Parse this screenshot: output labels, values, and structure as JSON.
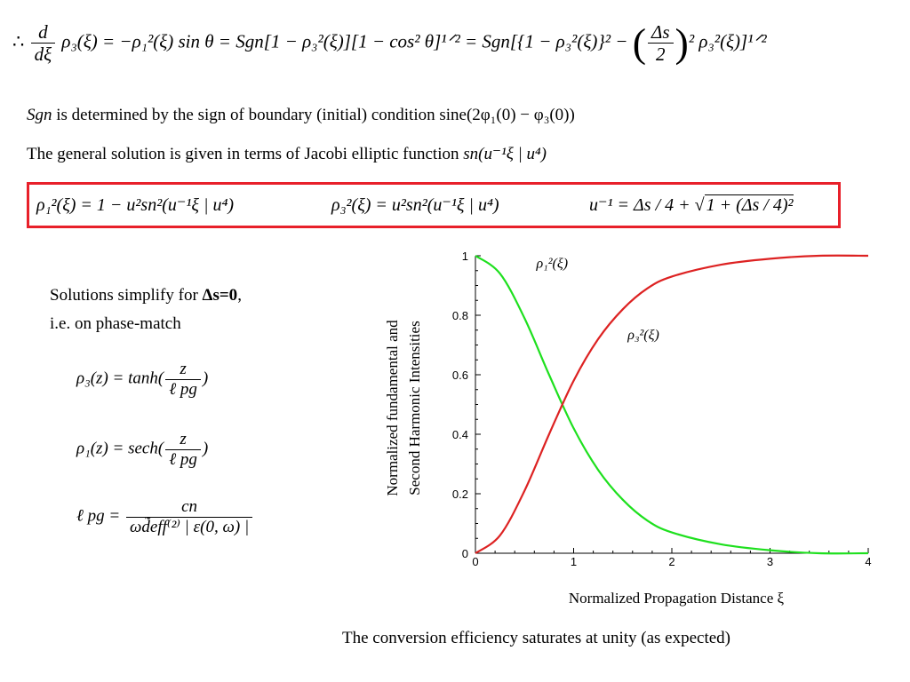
{
  "equations": {
    "top_a": "∴ ",
    "top_d": "d",
    "top_dxi": "dξ",
    "top_b": "ρ₃(ξ) = −ρ₁²(ξ) sin θ = Sgn[1 − ρ₃²(ξ)][1 − cos² θ]¹ᐟ² = Sgn[{1 − ρ₃²(ξ)}² − ",
    "top_delta_s": "Δs",
    "top_two": "2",
    "top_c": "² ρ₃²(ξ)]¹ᐟ²",
    "sgn_line_italic": "Sgn",
    "sgn_line_rest": " is determined by the sign of boundary (initial) condition  sine(2φ₁(0) − φ₃(0))",
    "general_line_text": "The general solution is given in terms of Jacobi elliptic function ",
    "general_line_math": "sn(u⁻¹ξ | u⁴)",
    "boxed_1": "ρ₁²(ξ) = 1 − u²sn²(u⁻¹ξ | u⁴)",
    "boxed_2": "ρ₃²(ξ) = u²sn²(u⁻¹ξ | u⁴)",
    "boxed_3a": "u⁻¹ = Δs / 4 + ",
    "boxed_3b": "1 + (Δs / 4)²"
  },
  "left_panel": {
    "line1_a": "Solutions simplify for ",
    "line1_b": "Δs=0",
    "line1_c": ",",
    "line2": "i.e. on phase-match",
    "f1_lhs": "ρ₃(z) = tanh(",
    "f1_num": "z",
    "f1_den": "ℓ pg",
    "f1_rhs": ")",
    "f2_lhs": "ρ₁(z) = sech(",
    "f2_num": "z",
    "f2_den": "ℓ pg",
    "f2_rhs": ")",
    "f3_lhs": "ℓ pg = ",
    "f3_num": "cn",
    "f3_den": "ωd̃eff⁽²⁾ | ε(0, ω) |"
  },
  "caption": "The conversion efficiency saturates at unity (as expected)",
  "chart_data": {
    "type": "line",
    "xlabel": "Normalized  Propagation  Distance  ξ",
    "ylabel_line1": "Normalized  fundamental  and",
    "ylabel_line2": "Second Harmonic Intensities",
    "xlim": [
      0,
      4
    ],
    "ylim": [
      0,
      1
    ],
    "xticks": [
      "0",
      "1",
      "2",
      "3",
      "4"
    ],
    "yticks": [
      "0",
      "0.2",
      "0.4",
      "0.6",
      "0.8",
      "1"
    ],
    "series": [
      {
        "name": "ρ₁²(ξ)",
        "color": "#1ee01e",
        "x": [
          0,
          0.25,
          0.5,
          0.75,
          1.0,
          1.25,
          1.5,
          1.75,
          2.0,
          2.5,
          3.0,
          3.5,
          4.0
        ],
        "y": [
          1.0,
          0.94,
          0.79,
          0.6,
          0.42,
          0.28,
          0.18,
          0.11,
          0.07,
          0.03,
          0.01,
          0.0,
          0.0
        ]
      },
      {
        "name": "ρ₃²(ξ)",
        "color": "#dd2222",
        "x": [
          0,
          0.25,
          0.5,
          0.75,
          1.0,
          1.25,
          1.5,
          1.75,
          2.0,
          2.5,
          3.0,
          3.5,
          4.0
        ],
        "y": [
          0.0,
          0.06,
          0.21,
          0.4,
          0.58,
          0.72,
          0.82,
          0.89,
          0.93,
          0.97,
          0.99,
          1.0,
          1.0
        ]
      }
    ],
    "annotations": [
      {
        "text": "ρ₁²(ξ)",
        "x": 0.62,
        "y": 0.96
      },
      {
        "text": "ρ₃²(ξ)",
        "x": 1.55,
        "y": 0.72
      }
    ]
  }
}
